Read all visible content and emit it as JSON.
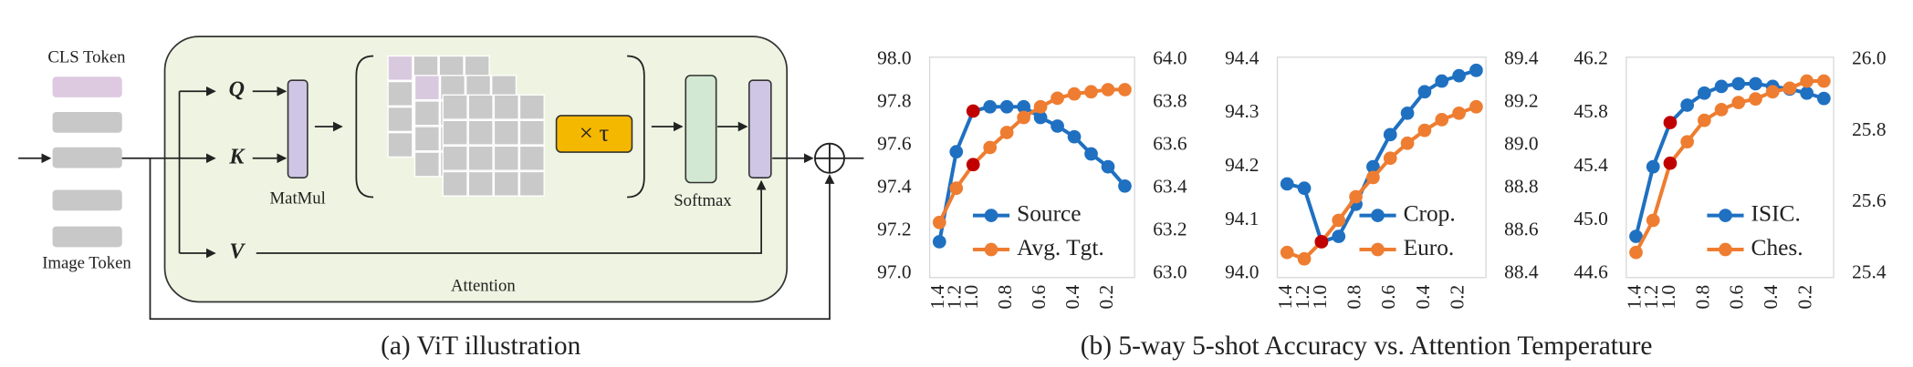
{
  "diagram": {
    "cls_token": "CLS Token",
    "image_token": "Image Token",
    "q": "Q",
    "k": "K",
    "v": "V",
    "matmul": "MatMul",
    "scale": "× τ",
    "softmax": "Softmax",
    "attention": "Attention"
  },
  "figure": {
    "caption_a": "(a) ViT illustration",
    "caption_b": "(b) 5-way 5-shot Accuracy vs. Attention Temperature"
  },
  "chart_data": [
    {
      "type": "line",
      "categories": [
        "1.4",
        "1.2",
        "1.0",
        null,
        "0.8",
        null,
        "0.6",
        null,
        "0.4",
        null,
        "0.2",
        null
      ],
      "series": [
        {
          "name": "Source",
          "color": "#1f70c1",
          "values": [
            97.15,
            97.57,
            97.76,
            97.78,
            97.78,
            97.78,
            97.73,
            97.69,
            97.64,
            97.56,
            97.5,
            97.41
          ]
        },
        {
          "name": "Avg. Tgt.",
          "color": "#ee7d31",
          "axis": "y2",
          "values": [
            63.24,
            63.4,
            63.51,
            63.59,
            63.66,
            63.73,
            63.78,
            63.82,
            63.84,
            63.85,
            63.86,
            63.86
          ]
        }
      ],
      "ylim": [
        97.0,
        98.0
      ],
      "yticks": [
        {
          "value": 97.0,
          "label": "97.0"
        },
        97.2,
        97.4,
        97.6,
        97.8,
        {
          "value": 98.0,
          "label": "98.0"
        }
      ],
      "y2lim": [
        63.0,
        64.0
      ],
      "y2ticks": [
        {
          "value": 63.0,
          "label": "63.0"
        },
        63.2,
        63.4,
        63.6,
        63.8,
        {
          "value": 64.0,
          "label": "64.0"
        }
      ],
      "highlight_index": 2,
      "highlight_color": "#c00000",
      "legend": "lower right",
      "grid": false
    },
    {
      "type": "line",
      "categories": [
        "1.4",
        "1.2",
        "1.0",
        null,
        "0.8",
        null,
        "0.6",
        null,
        "0.4",
        null,
        "0.2",
        null
      ],
      "series": [
        {
          "name": "Crop.",
          "color": "#1f70c1",
          "values": [
            94.168,
            94.16,
            94.06,
            94.07,
            94.13,
            94.2,
            94.26,
            94.3,
            94.34,
            94.36,
            94.37,
            94.38
          ]
        },
        {
          "name": "Euro.",
          "color": "#ee7d31",
          "axis": "y2",
          "values": [
            88.5,
            88.47,
            88.55,
            88.65,
            88.76,
            88.85,
            88.94,
            89.01,
            89.07,
            89.12,
            89.15,
            89.18
          ]
        }
      ],
      "ylim": [
        94.0,
        94.4
      ],
      "yticks": [
        {
          "value": 94.0,
          "label": "94.0"
        },
        94.1,
        94.2,
        94.3,
        94.4
      ],
      "y2lim": [
        88.4,
        89.4
      ],
      "y2ticks": [
        88.4,
        88.6,
        88.8,
        {
          "value": 89.0,
          "label": "89.0"
        },
        89.2,
        89.4
      ],
      "highlight_index": 2,
      "highlight_color": "#c00000",
      "legend": "lower right",
      "grid": false
    },
    {
      "type": "line",
      "categories": [
        "1.4",
        "1.2",
        "1.0",
        null,
        "0.8",
        null,
        "0.6",
        null,
        "0.4",
        null,
        "0.2",
        null
      ],
      "series": [
        {
          "name": "ISIC.",
          "color": "#1f70c1",
          "values": [
            44.88,
            45.4,
            45.73,
            45.86,
            45.95,
            46.0,
            46.02,
            46.02,
            46.0,
            45.98,
            45.95,
            45.91
          ]
        },
        {
          "name": "Ches.",
          "color": "#ee7d31",
          "axis": "y2",
          "values": [
            25.46,
            25.55,
            25.71,
            25.77,
            25.83,
            25.86,
            25.88,
            25.89,
            25.91,
            25.92,
            25.94,
            25.94
          ]
        }
      ],
      "ylim": [
        44.6,
        46.2
      ],
      "yticks": [
        44.6,
        {
          "value": 45.0,
          "label": "45.0"
        },
        45.4,
        45.8,
        46.2
      ],
      "y2lim": [
        25.4,
        26.0
      ],
      "y2ticks": [
        25.4,
        25.6,
        25.8,
        {
          "value": 26.0,
          "label": "26.0"
        }
      ],
      "highlight_index": 2,
      "highlight_color": "#c00000",
      "legend": "lower right",
      "grid": false
    }
  ]
}
